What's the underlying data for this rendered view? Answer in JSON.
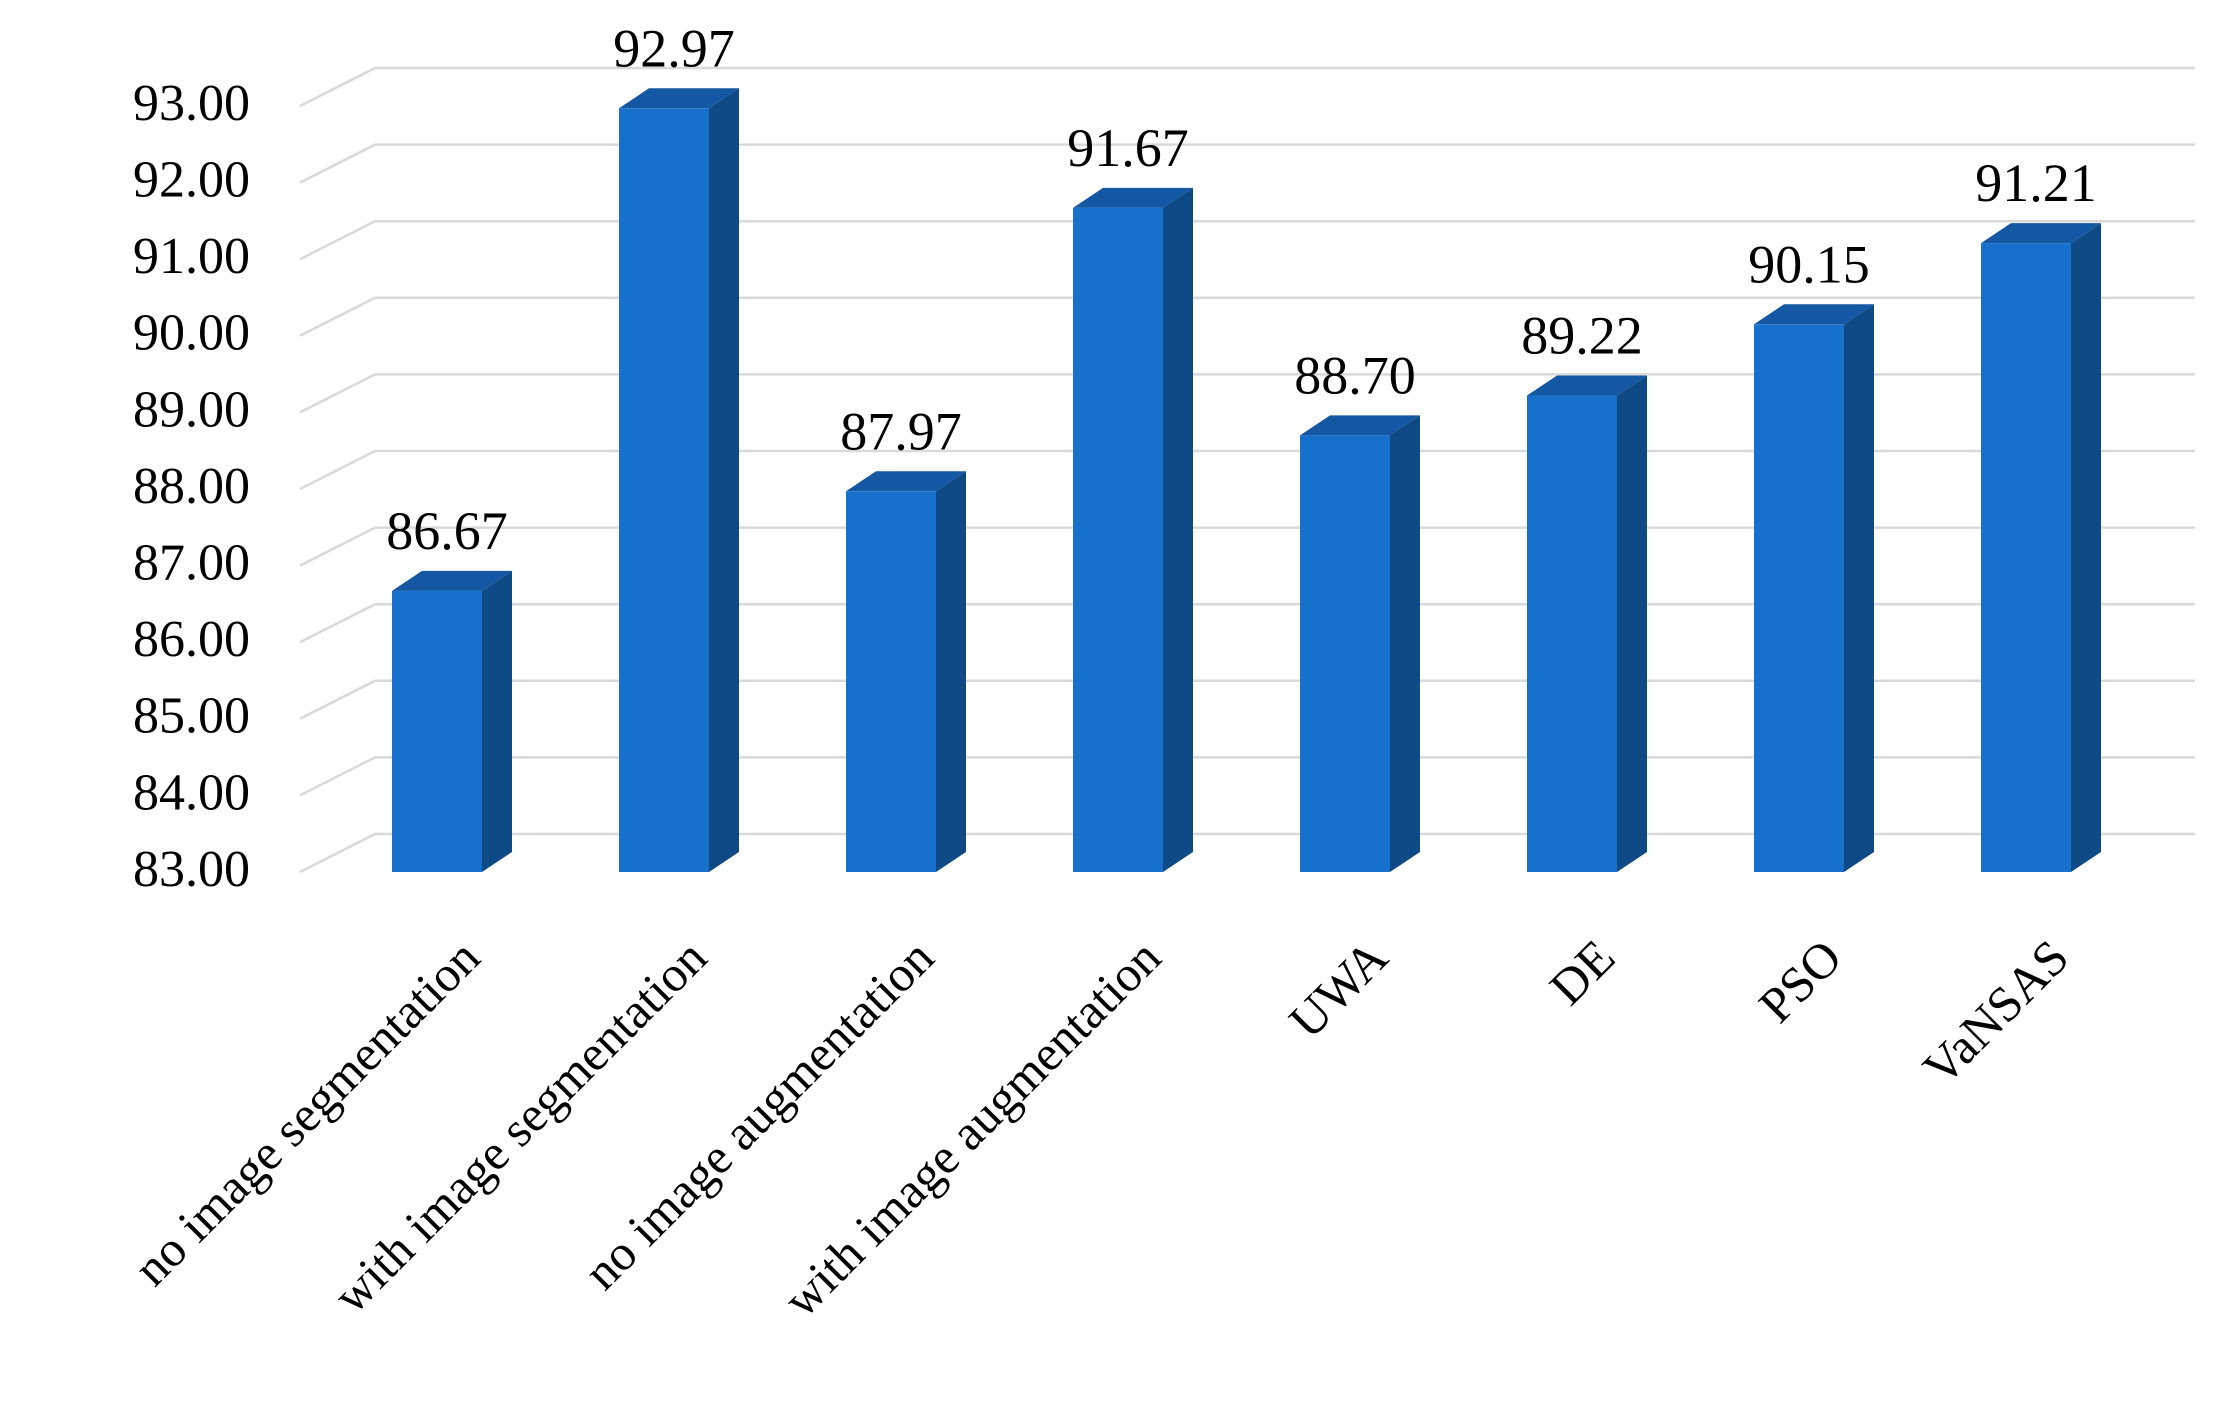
{
  "chart_data": {
    "type": "bar",
    "style": "3d-column",
    "categories": [
      "no image segmentation",
      "with image segmentation",
      "no image augmentation",
      "with image augmentation",
      "UWA",
      "DE",
      "PSO",
      "VaNSAS"
    ],
    "values": [
      86.67,
      92.97,
      87.97,
      91.67,
      88.7,
      89.22,
      90.15,
      91.21
    ],
    "value_labels": [
      "86.67",
      "92.97",
      "87.97",
      "91.67",
      "88.70",
      "89.22",
      "90.15",
      "91.21"
    ],
    "title": "",
    "xlabel": "",
    "ylabel": "",
    "ylim": [
      83,
      93
    ],
    "yticks": [
      83,
      84,
      85,
      86,
      87,
      88,
      89,
      90,
      91,
      92,
      93
    ],
    "ytick_labels": [
      "83.00",
      "84.00",
      "85.00",
      "86.00",
      "87.00",
      "88.00",
      "89.00",
      "90.00",
      "91.00",
      "92.00",
      "93.00"
    ],
    "grid": true,
    "legend": "none",
    "colors": {
      "bar_front": "#1770CC",
      "bar_side": "#0F4A87",
      "bar_top": "#1457A3",
      "gridline": "#D9D9D9"
    }
  }
}
